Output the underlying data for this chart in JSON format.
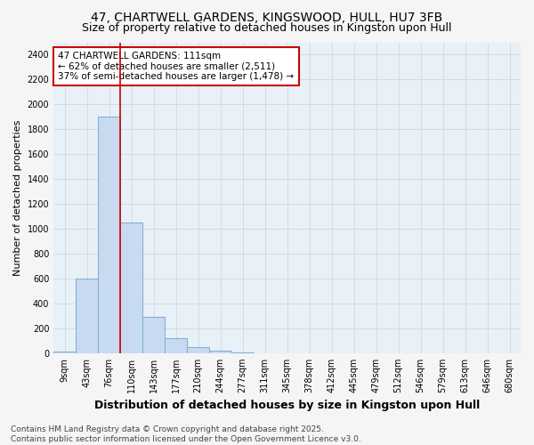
{
  "title": "47, CHARTWELL GARDENS, KINGSWOOD, HULL, HU7 3FB",
  "subtitle": "Size of property relative to detached houses in Kingston upon Hull",
  "xlabel": "Distribution of detached houses by size in Kingston upon Hull",
  "ylabel": "Number of detached properties",
  "bar_color": "#c8daf0",
  "bar_edge_color": "#7bacd4",
  "plot_bg_color": "#e8f0f8",
  "fig_bg_color": "#f5f5f5",
  "grid_color": "#d0d8e0",
  "vline_color": "#cc0000",
  "annotation_box_color": "#cc0000",
  "annotation_text": "47 CHARTWELL GARDENS: 111sqm\n← 62% of detached houses are smaller (2,511)\n37% of semi-detached houses are larger (1,478) →",
  "vline_pos": 2.5,
  "categories": [
    "9sqm",
    "43sqm",
    "76sqm",
    "110sqm",
    "143sqm",
    "177sqm",
    "210sqm",
    "244sqm",
    "277sqm",
    "311sqm",
    "345sqm",
    "378sqm",
    "412sqm",
    "445sqm",
    "479sqm",
    "512sqm",
    "546sqm",
    "579sqm",
    "613sqm",
    "646sqm",
    "680sqm"
  ],
  "values": [
    10,
    600,
    1900,
    1050,
    290,
    120,
    50,
    20,
    3,
    1,
    1,
    1,
    0,
    0,
    0,
    0,
    0,
    0,
    0,
    0,
    0
  ],
  "ylim": [
    0,
    2500
  ],
  "yticks": [
    0,
    200,
    400,
    600,
    800,
    1000,
    1200,
    1400,
    1600,
    1800,
    2000,
    2200,
    2400
  ],
  "footnote": "Contains HM Land Registry data © Crown copyright and database right 2025.\nContains public sector information licensed under the Open Government Licence v3.0.",
  "title_fontsize": 10,
  "subtitle_fontsize": 9,
  "xlabel_fontsize": 9,
  "ylabel_fontsize": 8,
  "tick_fontsize": 7,
  "annotation_fontsize": 7.5,
  "footnote_fontsize": 6.5
}
